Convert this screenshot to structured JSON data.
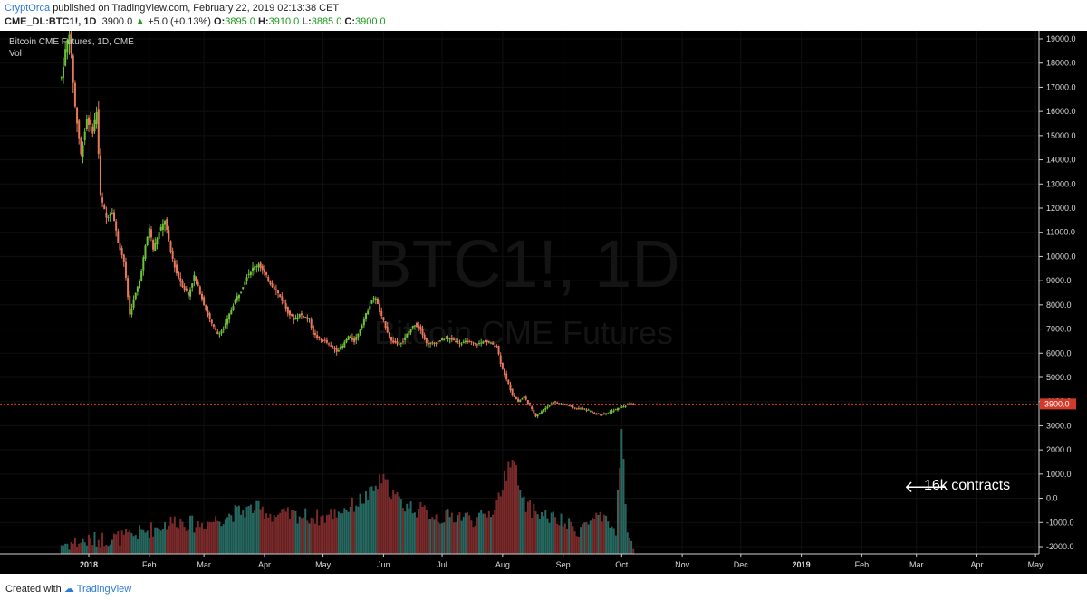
{
  "header": {
    "author": "CryptOrca",
    "published": "published on TradingView.com, February 22, 2019 02:13:38 CET",
    "symbol": "CME_DL:BTC1!, 1D",
    "price": "3900.0",
    "change": "+5.0 (+0.13%)",
    "o_label": "O:",
    "o_value": "3895.0",
    "h_label": "H:",
    "h_value": "3910.0",
    "l_label": "L:",
    "l_value": "3885.0",
    "c_label": "C:",
    "c_value": "3900.0"
  },
  "footer": {
    "created_with": "Created with",
    "brand": "TradingView"
  },
  "colors": {
    "background": "#000000",
    "up": "#6fc23a",
    "down": "#e8795a",
    "vol_up": "#26675f",
    "vol_down": "#7a2a2a",
    "price_line": "#d33a2a",
    "grid": "#101010"
  },
  "chart_data": {
    "type": "candlestick",
    "title": "Bitcoin CME Futures, 1D, CME",
    "subtitle": "Vol",
    "watermark_main": "BTC1!, 1D",
    "watermark_sub": "Bitcoin CME Futures",
    "x_ticks": [
      "2018",
      "Feb",
      "Mar",
      "Apr",
      "May",
      "Jun",
      "Jul",
      "Aug",
      "Sep",
      "Oct",
      "Nov",
      "Dec",
      "2019",
      "Feb",
      "Mar",
      "Apr",
      "May"
    ],
    "x_tick_days": [
      0,
      31,
      59,
      90,
      120,
      151,
      181,
      212,
      243,
      273,
      304,
      334,
      365,
      396,
      424,
      455,
      485
    ],
    "y_ticks": [
      "19000.0",
      "18000.0",
      "17000.0",
      "16000.0",
      "15000.0",
      "14000.0",
      "13000.0",
      "12000.0",
      "11000.0",
      "10000.0",
      "9000.0",
      "8000.0",
      "7000.0",
      "6000.0",
      "5000.0",
      "4000.0",
      "3000.0",
      "2000.0",
      "1000.0",
      "0.0",
      "-1000.0",
      "-2000.0"
    ],
    "y_tick_values": [
      19000,
      18000,
      17000,
      16000,
      15000,
      14000,
      13000,
      12000,
      11000,
      10000,
      9000,
      8000,
      7000,
      6000,
      5000,
      4000,
      3000,
      2000,
      1000,
      0,
      -1000,
      -2000
    ],
    "ylim": [
      -2400,
      19500
    ],
    "last_price_label": "3900.0",
    "last_price": 3900,
    "annotation": "16k contracts",
    "price_anchors": [
      [
        -14,
        17400
      ],
      [
        -12,
        18500
      ],
      [
        -10,
        19300
      ],
      [
        -7,
        16200
      ],
      [
        -4,
        14200
      ],
      [
        -1,
        15700
      ],
      [
        2,
        15200
      ],
      [
        4,
        16000
      ],
      [
        6,
        12500
      ],
      [
        9,
        11600
      ],
      [
        12,
        11900
      ],
      [
        15,
        10600
      ],
      [
        18,
        9800
      ],
      [
        21,
        7600
      ],
      [
        23,
        8200
      ],
      [
        26,
        9000
      ],
      [
        29,
        10400
      ],
      [
        31,
        11200
      ],
      [
        33,
        10300
      ],
      [
        36,
        11000
      ],
      [
        39,
        11500
      ],
      [
        42,
        10200
      ],
      [
        45,
        9300
      ],
      [
        48,
        8800
      ],
      [
        51,
        8400
      ],
      [
        54,
        9200
      ],
      [
        57,
        8500
      ],
      [
        60,
        7800
      ],
      [
        63,
        7200
      ],
      [
        66,
        6800
      ],
      [
        69,
        7000
      ],
      [
        72,
        7600
      ],
      [
        75,
        8200
      ],
      [
        78,
        8600
      ],
      [
        81,
        9200
      ],
      [
        84,
        9500
      ],
      [
        87,
        9700
      ],
      [
        90,
        9300
      ],
      [
        93,
        8900
      ],
      [
        96,
        8600
      ],
      [
        99,
        8200
      ],
      [
        102,
        7700
      ],
      [
        105,
        7400
      ],
      [
        108,
        7600
      ],
      [
        111,
        7500
      ],
      [
        113,
        7400
      ],
      [
        115,
        6800
      ],
      [
        118,
        6600
      ],
      [
        121,
        6500
      ],
      [
        124,
        6300
      ],
      [
        127,
        6100
      ],
      [
        130,
        6300
      ],
      [
        133,
        6700
      ],
      [
        136,
        6500
      ],
      [
        139,
        7000
      ],
      [
        142,
        7600
      ],
      [
        145,
        8200
      ],
      [
        147,
        8300
      ],
      [
        149,
        7700
      ],
      [
        152,
        7100
      ],
      [
        155,
        6500
      ],
      [
        158,
        6400
      ],
      [
        161,
        6500
      ],
      [
        164,
        6900
      ],
      [
        167,
        7200
      ],
      [
        170,
        7000
      ],
      [
        173,
        6400
      ],
      [
        176,
        6400
      ],
      [
        179,
        6500
      ],
      [
        182,
        6600
      ],
      [
        185,
        6600
      ],
      [
        188,
        6500
      ],
      [
        191,
        6400
      ],
      [
        194,
        6500
      ],
      [
        197,
        6400
      ],
      [
        200,
        6400
      ],
      [
        203,
        6500
      ],
      [
        206,
        6400
      ],
      [
        209,
        6300
      ],
      [
        211,
        5600
      ],
      [
        214,
        4900
      ],
      [
        217,
        4300
      ],
      [
        220,
        4000
      ],
      [
        223,
        4200
      ],
      [
        226,
        3800
      ],
      [
        229,
        3400
      ],
      [
        232,
        3600
      ],
      [
        235,
        3800
      ],
      [
        238,
        4000
      ],
      [
        241,
        3900
      ],
      [
        244,
        3900
      ],
      [
        247,
        3800
      ],
      [
        250,
        3700
      ],
      [
        253,
        3700
      ],
      [
        256,
        3650
      ],
      [
        259,
        3500
      ],
      [
        262,
        3500
      ],
      [
        265,
        3500
      ],
      [
        268,
        3600
      ],
      [
        271,
        3700
      ],
      [
        274,
        3800
      ],
      [
        277,
        3900
      ],
      [
        279,
        3900
      ]
    ],
    "volume_anchors": [
      [
        -14,
        -1900
      ],
      [
        -4,
        -1800
      ],
      [
        5,
        -1700
      ],
      [
        20,
        -1600
      ],
      [
        35,
        -1200
      ],
      [
        45,
        -900
      ],
      [
        55,
        -1100
      ],
      [
        65,
        -900
      ],
      [
        75,
        -600
      ],
      [
        85,
        -400
      ],
      [
        95,
        -700
      ],
      [
        108,
        -700
      ],
      [
        120,
        -800
      ],
      [
        135,
        -300
      ],
      [
        145,
        200
      ],
      [
        150,
        800
      ],
      [
        160,
        -200
      ],
      [
        170,
        -500
      ],
      [
        180,
        -800
      ],
      [
        190,
        -700
      ],
      [
        200,
        -900
      ],
      [
        208,
        -400
      ],
      [
        213,
        800
      ],
      [
        217,
        1900
      ],
      [
        222,
        -200
      ],
      [
        230,
        -600
      ],
      [
        240,
        -900
      ],
      [
        250,
        -1300
      ],
      [
        260,
        -800
      ],
      [
        270,
        -1300
      ],
      [
        273,
        3000
      ],
      [
        276,
        -1700
      ],
      [
        279,
        -1800
      ]
    ]
  }
}
